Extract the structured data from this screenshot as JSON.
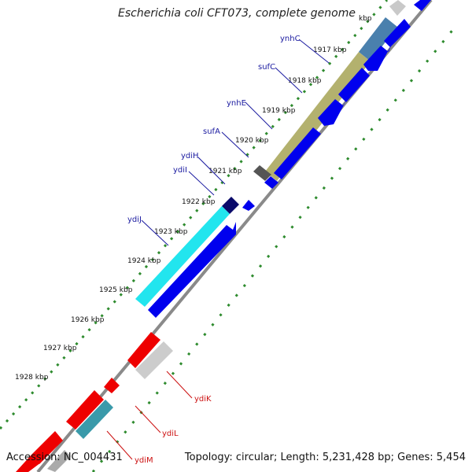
{
  "title": "Escherichia coli CFT073, complete genome",
  "accession": "Accession: NC_004431",
  "summary": "Topology: circular; Length: 5,231,428 bp; Genes: 5,454",
  "kbp_labels": [
    "kbp",
    "1917 kbp",
    "1918 kbp",
    "1919 kbp",
    "1920 kbp",
    "1921 kbp",
    "1922 kbp",
    "1923 kbp",
    "1924 kbp",
    "1925 kbp",
    "1926 kbp",
    "1927 kbp",
    "1928 kbp"
  ],
  "genes_top": [
    "ynhC",
    "sufC",
    "ynhE",
    "sufA",
    "ydiH",
    "ydiI",
    "ydiJ"
  ],
  "genes_bottom": [
    "ydiK",
    "ydiL",
    "ydiM"
  ],
  "colors": {
    "forward_gene": "#0000ee",
    "reverse_gene": "#ee0000",
    "top_label": "#1a1aa0",
    "bottom_label": "#cc1111",
    "tick": "#228b22",
    "backbone": "#888888"
  }
}
